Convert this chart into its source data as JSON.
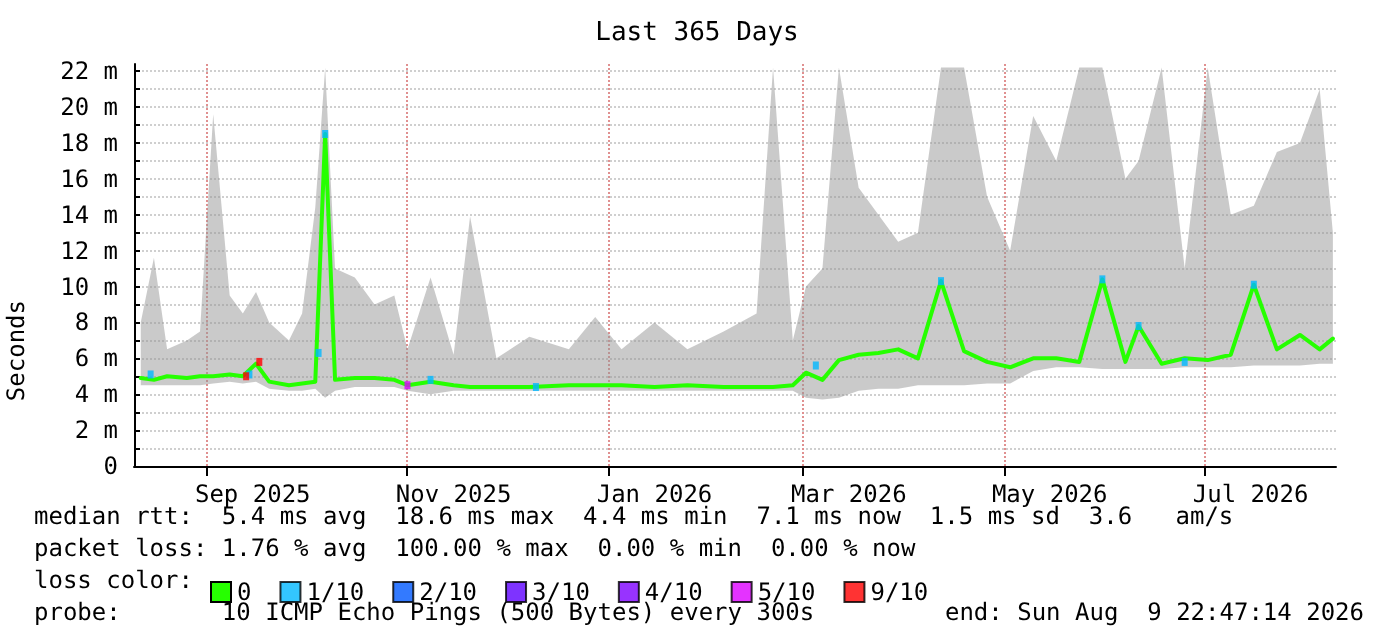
{
  "chart_data": {
    "type": "line",
    "title": "Last 365 Days",
    "ylabel": "Seconds",
    "xlim": [
      "2025-08-09T22:47",
      "2026-08-09T22:47"
    ],
    "xticks": [
      {
        "value": "2025-09-01",
        "label": null
      },
      {
        "value": "2025-09-15",
        "label": "Sep 2025"
      },
      {
        "value": "2025-11-01",
        "label": null
      },
      {
        "value": "2025-11-15",
        "label": "Nov 2025"
      },
      {
        "value": "2026-01-01",
        "label": null
      },
      {
        "value": "2026-01-15",
        "label": "Jan 2026"
      },
      {
        "value": "2026-03-01",
        "label": null
      },
      {
        "value": "2026-03-15",
        "label": "Mar 2026"
      },
      {
        "value": "2026-05-01",
        "label": null
      },
      {
        "value": "2026-05-15",
        "label": "May 2026"
      },
      {
        "value": "2026-07-01",
        "label": null
      },
      {
        "value": "2026-07-15",
        "label": "Jul 2026"
      }
    ],
    "ylim": [
      0,
      22.4
    ],
    "yticks": [
      0,
      {
        "value": 1,
        "label": null
      },
      {
        "value": 2,
        "label": "2 m"
      },
      {
        "value": 3,
        "label": null
      },
      {
        "value": 4,
        "label": "4 m"
      },
      {
        "value": 5,
        "label": null
      },
      {
        "value": 6,
        "label": "6 m"
      },
      {
        "value": 7,
        "label": null
      },
      {
        "value": 8,
        "label": "8 m"
      },
      {
        "value": 9,
        "label": null
      },
      {
        "value": 10,
        "label": "10 m"
      },
      {
        "value": 11,
        "label": null
      },
      {
        "value": 12,
        "label": "12 m"
      },
      {
        "value": 13,
        "label": null
      },
      {
        "value": 14,
        "label": "14 m"
      },
      {
        "value": 15,
        "label": null
      },
      {
        "value": 16,
        "label": "16 m"
      },
      {
        "value": 17,
        "label": null
      },
      {
        "value": 18,
        "label": "18 m"
      },
      {
        "value": 19,
        "label": null
      },
      {
        "value": 20,
        "label": "20 m"
      },
      {
        "value": 21,
        "label": null
      },
      {
        "value": 22,
        "label": "22 m"
      }
    ],
    "grid": true,
    "legend": "bottom",
    "line_style": "solid",
    "series": [
      {
        "name": "0",
        "color": "#26ff00",
        "marker": "none",
        "x": [
          "2025-08-12",
          "2025-08-16",
          "2025-08-20",
          "2025-08-26",
          "2025-08-30",
          "2025-09-03",
          "2025-09-08",
          "2025-09-12",
          "2025-09-16",
          "2025-09-20",
          "2025-09-26",
          "2025-09-30",
          "2025-10-04",
          "2025-10-07",
          "2025-10-10",
          "2025-10-16",
          "2025-10-22",
          "2025-10-28",
          "2025-11-01",
          "2025-11-08",
          "2025-11-15",
          "2025-11-20",
          "2025-11-28",
          "2025-12-08",
          "2025-12-20",
          "2025-12-28",
          "2026-01-05",
          "2026-01-15",
          "2026-01-25",
          "2026-02-05",
          "2026-02-15",
          "2026-02-20",
          "2026-02-26",
          "2026-03-02",
          "2026-03-07",
          "2026-03-12",
          "2026-03-18",
          "2026-03-24",
          "2026-03-30",
          "2026-04-05",
          "2026-04-12",
          "2026-04-19",
          "2026-04-26",
          "2026-05-03",
          "2026-05-10",
          "2026-05-17",
          "2026-05-24",
          "2026-05-31",
          "2026-06-07",
          "2026-06-11",
          "2026-06-18",
          "2026-06-25",
          "2026-07-02",
          "2026-07-09",
          "2026-07-16",
          "2026-07-23",
          "2026-07-30",
          "2026-08-05",
          "2026-08-09"
        ],
        "values": [
          4.9,
          4.8,
          5.0,
          4.9,
          5.0,
          5.0,
          5.1,
          5.0,
          5.7,
          4.7,
          4.5,
          4.6,
          4.7,
          18.5,
          4.8,
          4.9,
          4.9,
          4.8,
          4.5,
          4.7,
          4.5,
          4.4,
          4.4,
          4.4,
          4.5,
          4.5,
          4.5,
          4.4,
          4.5,
          4.4,
          4.4,
          4.4,
          4.5,
          5.2,
          4.8,
          5.9,
          6.2,
          6.3,
          6.5,
          6.0,
          10.3,
          6.4,
          5.8,
          5.5,
          6.0,
          6.0,
          5.8,
          10.4,
          5.8,
          7.8,
          5.7,
          6.0,
          5.9,
          6.2,
          10.1,
          6.5,
          7.3,
          6.5,
          7.1
        ],
        "lower": [
          4.5,
          4.5,
          4.5,
          4.5,
          4.5,
          4.6,
          4.7,
          4.6,
          4.7,
          4.3,
          4.2,
          4.2,
          4.3,
          3.8,
          4.2,
          4.4,
          4.4,
          4.4,
          4.2,
          4.0,
          4.2,
          4.2,
          4.2,
          4.2,
          4.2,
          4.2,
          4.2,
          4.2,
          4.2,
          4.2,
          4.2,
          4.2,
          4.2,
          3.8,
          3.7,
          3.8,
          4.2,
          4.3,
          4.3,
          4.5,
          4.5,
          4.5,
          4.6,
          4.6,
          5.3,
          5.5,
          5.5,
          5.4,
          5.4,
          5.4,
          5.4,
          5.5,
          5.5,
          5.5,
          5.6,
          5.6,
          5.6,
          5.7,
          5.7
        ],
        "upper": [
          8.0,
          11.6,
          6.5,
          7.0,
          7.5,
          19.6,
          9.5,
          8.5,
          9.7,
          8.0,
          7.0,
          8.5,
          14.4,
          22.2,
          11.0,
          10.5,
          9.0,
          9.5,
          6.5,
          10.5,
          6.2,
          13.9,
          6.0,
          7.2,
          6.5,
          8.3,
          6.5,
          8.0,
          6.5,
          7.5,
          8.5,
          22.2,
          7.0,
          10.0,
          11.0,
          22.2,
          15.5,
          14.0,
          12.5,
          13.0,
          22.2,
          22.2,
          15.0,
          12.0,
          19.5,
          17.0,
          22.2,
          22.2,
          16.0,
          17.0,
          22.2,
          11.0,
          22.2,
          14.0,
          14.5,
          17.5,
          18.0,
          21.0,
          13.0
        ]
      },
      {
        "name": "1/10",
        "color": "#00b8ff",
        "type": "scatter",
        "marker": "square",
        "x": [
          "2025-08-15",
          "2025-09-14",
          "2025-10-05",
          "2025-10-07",
          "2025-11-08",
          "2025-12-10",
          "2026-03-05",
          "2026-04-12",
          "2026-05-31",
          "2026-06-11",
          "2026-06-25",
          "2026-07-16"
        ],
        "values": [
          5.1,
          5.1,
          6.3,
          18.5,
          4.8,
          4.4,
          5.6,
          10.3,
          10.4,
          7.8,
          5.8,
          10.1
        ]
      },
      {
        "name": "2/10",
        "color": "#0059ff",
        "type": "scatter",
        "marker": "square"
      },
      {
        "name": "3/10",
        "color": "#5e00ff",
        "type": "scatter",
        "marker": "square"
      },
      {
        "name": "4/10",
        "color": "#7e00ff",
        "type": "scatter",
        "marker": "square"
      },
      {
        "name": "5/10",
        "color": "#dd00ff",
        "type": "scatter",
        "marker": "square",
        "x": [
          "2025-11-01"
        ],
        "values": [
          4.5
        ]
      },
      {
        "name": "9/10",
        "color": "#ff0000",
        "type": "scatter",
        "marker": "square",
        "x": [
          "2025-09-13",
          "2025-09-17"
        ],
        "values": [
          5.0,
          5.8
        ]
      }
    ],
    "annotations": [
      "median rtt:  5.4 ms avg  18.6 ms max  4.4 ms min  7.1 ms now  1.5 ms sd  3.6   am/s",
      "packet loss: 1.76 % avg  100.00 % max  0.00 % min  0.00 % now",
      "loss color:",
      "probe:       10 ICMP Echo Pings (500 Bytes) every 300s",
      "end: Sun Aug  9 22:47:14 2026"
    ]
  }
}
